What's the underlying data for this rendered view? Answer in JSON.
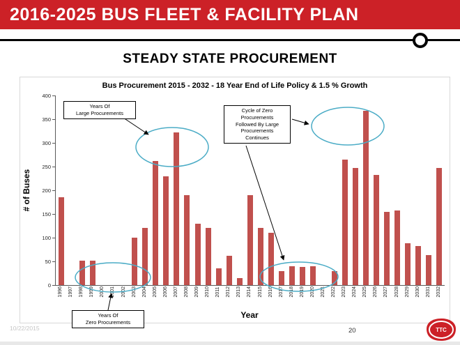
{
  "slide": {
    "header_title": "2016-2025 BUS FLEET & FACILITY PLAN",
    "section_title": "STEADY STATE PROCUREMENT",
    "footer_date": "10/22/2015",
    "page_number": "20",
    "logo": "ttc-logo"
  },
  "colors": {
    "header_red": "#CC2127",
    "bar_red": "#C0504D",
    "ellipse_blue": "#4BACC6",
    "footer_date_gray": "#C6C6C6"
  },
  "chart_data": {
    "type": "bar",
    "title": "Bus Procurement 2015 - 2032  - 18 Year End of Life Policy & 1.5 % Growth",
    "xlabel": "Year",
    "ylabel": "# of Buses",
    "ylim": [
      0,
      400
    ],
    "yticks": [
      0,
      50,
      100,
      150,
      200,
      250,
      300,
      350,
      400
    ],
    "grid": false,
    "legend": "none",
    "categories": [
      "1996",
      "1997",
      "1998",
      "1999",
      "2000",
      "2001",
      "2002",
      "2003",
      "2004",
      "2005",
      "2006",
      "2007",
      "2008",
      "2009",
      "2010",
      "2011",
      "2012",
      "2013",
      "2014",
      "2015",
      "2016",
      "2017",
      "2018",
      "2019",
      "2020",
      "2021",
      "2022",
      "2023",
      "2024",
      "2025",
      "2026",
      "2027",
      "2028",
      "2029",
      "2030",
      "2031",
      "2032"
    ],
    "values": [
      185,
      0,
      52,
      52,
      0,
      0,
      0,
      100,
      120,
      262,
      230,
      322,
      190,
      130,
      120,
      35,
      62,
      15,
      190,
      120,
      110,
      30,
      40,
      38,
      40,
      0,
      30,
      265,
      247,
      368,
      232,
      155,
      158,
      88,
      83,
      63,
      247
    ],
    "annotations": [
      {
        "id": "large-procurements",
        "text": "Years Of\nLarge Procurements"
      },
      {
        "id": "cycle-of-zero",
        "text": "Cycle of Zero\nProcurements\nFollowed By Large\nProcurements\nContinues"
      },
      {
        "id": "zero-procurements",
        "text": "Years Of\nZero Procurements"
      }
    ]
  }
}
